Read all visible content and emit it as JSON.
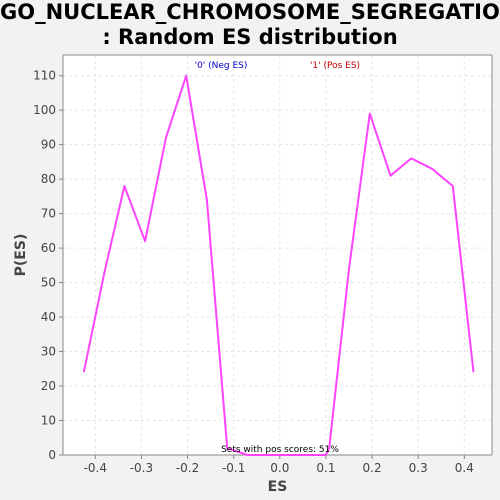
{
  "chart_data": {
    "type": "line",
    "title": [
      "GO_NUCLEAR_CHROMOSOME_SEGREGATION",
      ": Random ES distribution"
    ],
    "xlabel": "ES",
    "ylabel": "P(ES)",
    "xlim": [
      -0.47,
      0.46
    ],
    "ylim": [
      0,
      116
    ],
    "x_ticks": [
      -0.4,
      -0.3,
      -0.2,
      -0.1,
      0.0,
      0.1,
      0.2,
      0.3,
      0.4
    ],
    "x_tick_labels": [
      "-0.4",
      "-0.3",
      "-0.2",
      "-0.1",
      "0.0",
      "0.1",
      "0.2",
      "0.3",
      "0.4"
    ],
    "y_ticks": [
      0,
      10,
      20,
      30,
      40,
      50,
      60,
      70,
      80,
      90,
      100,
      110
    ],
    "y_tick_labels": [
      "0",
      "10",
      "20",
      "30",
      "40",
      "50",
      "60",
      "70",
      "80",
      "90",
      "100",
      "110"
    ],
    "grid": true,
    "legend": [
      {
        "label": "'0' (Neg ES)",
        "color": "#0000cc"
      },
      {
        "label": "'1' (Pos ES)",
        "color": "#cc0000"
      }
    ],
    "legend_placement": "top-center",
    "annotation": "Sets with pos scores: 51%",
    "series": [
      {
        "color": "#ff44ff",
        "x": [
          -0.425,
          -0.38,
          -0.337,
          -0.292,
          -0.247,
          -0.203,
          -0.158,
          -0.114,
          -0.07,
          0.1,
          0.107,
          0.15,
          0.195,
          0.24,
          0.285,
          0.33,
          0.375,
          0.42
        ],
        "y": [
          24,
          53,
          78,
          62,
          92,
          110,
          74,
          2,
          0,
          0,
          2,
          54,
          99,
          81,
          86,
          83,
          78,
          24
        ]
      }
    ]
  }
}
